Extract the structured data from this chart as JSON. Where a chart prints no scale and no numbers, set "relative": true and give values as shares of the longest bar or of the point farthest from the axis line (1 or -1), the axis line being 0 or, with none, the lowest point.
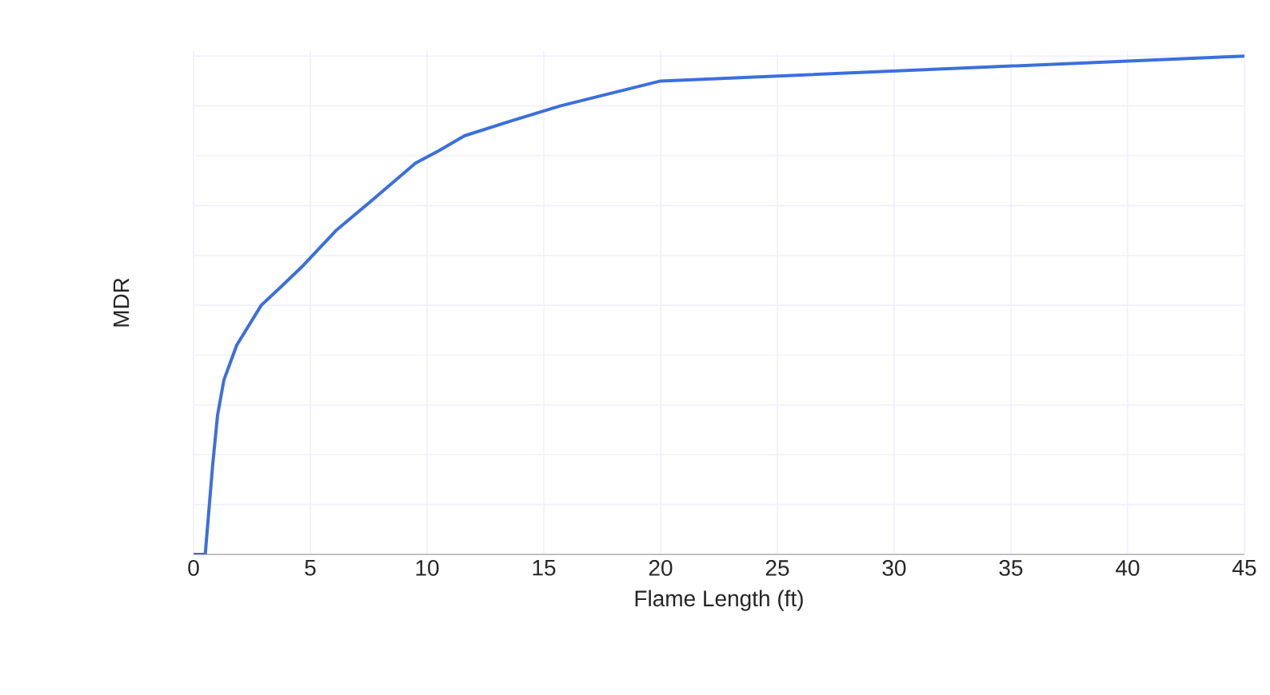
{
  "chart_data": {
    "type": "line",
    "xlabel": "Flame Length (ft)",
    "ylabel": "MDR",
    "relative": true,
    "x": [
      0,
      0.5,
      0.82,
      1.03,
      1.3,
      1.85,
      2.9,
      3.7,
      4.7,
      6.1,
      7.5,
      9.5,
      10.5,
      11.6,
      13.6,
      15.7,
      20,
      45
    ],
    "values": [
      0,
      0,
      0.18,
      0.28,
      0.35,
      0.42,
      0.5,
      0.535,
      0.58,
      0.65,
      0.705,
      0.785,
      0.81,
      0.84,
      0.87,
      0.9,
      0.95,
      1.0
    ],
    "color": "#3c6fdc",
    "xlim": [
      0,
      45
    ],
    "xticks": [
      0,
      5,
      10,
      15,
      20,
      25,
      30,
      35,
      40,
      45
    ],
    "grid": true,
    "tick_labels": "x",
    "marker": "none",
    "line_style": "solid"
  }
}
